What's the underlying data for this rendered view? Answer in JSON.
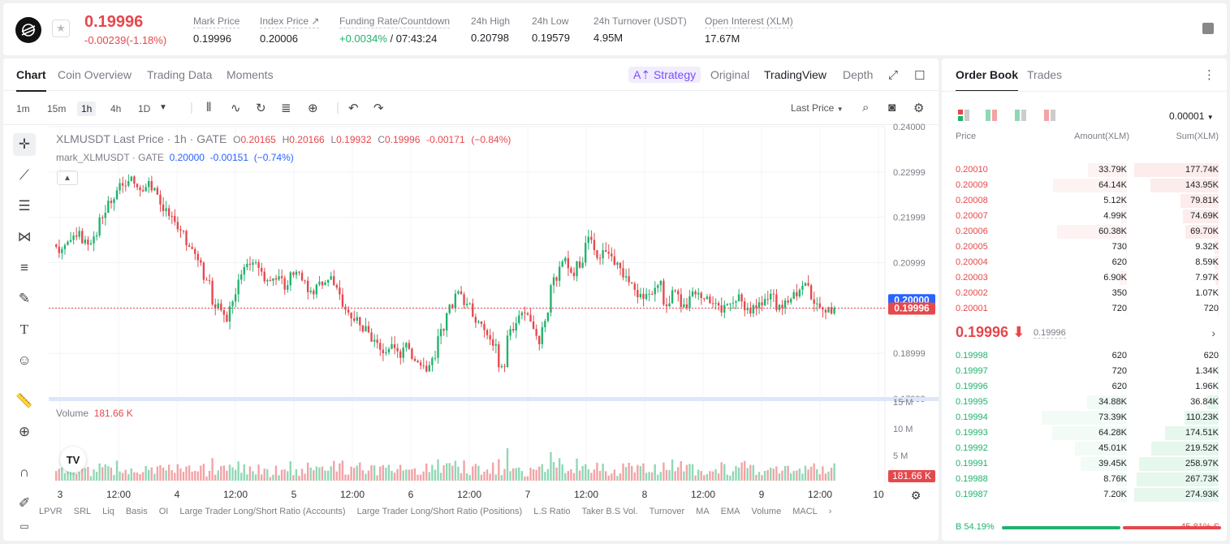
{
  "header": {
    "last_price": "0.19996",
    "change": "-0.00239(-1.18%)",
    "stats": [
      {
        "label": "Mark Price",
        "value": "0.19996"
      },
      {
        "label": "Index Price ↗",
        "value": "0.20006"
      },
      {
        "label": "Funding Rate/Countdown",
        "value_green": "+0.0034%",
        "value_rest": " / 07:43:24"
      },
      {
        "label": "24h High",
        "value": "0.20798"
      },
      {
        "label": "24h Low",
        "value": "0.19579"
      },
      {
        "label": "24h Turnover (USDT)",
        "value": "4.95M"
      },
      {
        "label": "Open Interest (XLM)",
        "value": "17.67M"
      }
    ]
  },
  "chart_tabs": {
    "tabs": [
      "Chart",
      "Coin Overview",
      "Trading Data",
      "Moments"
    ],
    "strategy": "Strategy",
    "views": [
      "Original",
      "TradingView",
      "Depth"
    ]
  },
  "toolbar": {
    "intervals": [
      "1m",
      "15m",
      "1h",
      "4h",
      "1D"
    ],
    "price_type": "Last Price"
  },
  "legend": {
    "line1_name": "XLMUSDT Last Price · 1h · GATE",
    "o_lbl": "O",
    "o": "0.20165",
    "h_lbl": "H",
    "h": "0.20166",
    "l_lbl": "L",
    "l": "0.19932",
    "c_lbl": "C",
    "c": "0.19996",
    "chg": "-0.00171",
    "chg_pct": "(−0.84%)",
    "line2_name": "mark_XLMUSDT · GATE",
    "mark": "0.20000",
    "mark_chg": "-0.00151",
    "mark_pct": "(−0.74%)",
    "volume_label": "Volume",
    "volume_value": "181.66 K"
  },
  "indicators": [
    "LPVR",
    "SRL",
    "Liq",
    "Basis",
    "OI",
    "Large Trader Long/Short Ratio (Accounts)",
    "Large Trader Long/Short Ratio (Positions)",
    "L.S Ratio",
    "Taker B.S Vol.",
    "Turnover",
    "MA",
    "EMA",
    "Volume",
    "MACL"
  ],
  "chart_data": {
    "type": "candlestick",
    "y_axis_ticks": [
      "0.24000",
      "0.22999",
      "0.21999",
      "0.20999",
      "0.19999",
      "0.18999",
      "0.17999"
    ],
    "ylim": [
      0.17999,
      0.24
    ],
    "x_axis_ticks": [
      "3",
      "12:00",
      "4",
      "12:00",
      "5",
      "12:00",
      "6",
      "12:00",
      "7",
      "12:00",
      "8",
      "12:00",
      "9",
      "12:00",
      "10"
    ],
    "volume_axis_ticks": [
      "15 M",
      "10 M",
      "5 M"
    ],
    "mark_price_tag": "0.20000",
    "last_price_tag": "0.19996",
    "volume_tag": "181.66 K",
    "close_path": [
      0.213,
      0.215,
      0.217,
      0.214,
      0.216,
      0.221,
      0.224,
      0.227,
      0.229,
      0.226,
      0.228,
      0.225,
      0.222,
      0.219,
      0.217,
      0.213,
      0.21,
      0.206,
      0.201,
      0.197,
      0.203,
      0.209,
      0.21,
      0.208,
      0.206,
      0.207,
      0.205,
      0.208,
      0.206,
      0.203,
      0.205,
      0.207,
      0.203,
      0.199,
      0.198,
      0.196,
      0.193,
      0.19,
      0.192,
      0.189,
      0.191,
      0.188,
      0.186,
      0.189,
      0.195,
      0.2,
      0.203,
      0.201,
      0.197,
      0.194,
      0.192,
      0.187,
      0.195,
      0.199,
      0.197,
      0.192,
      0.199,
      0.206,
      0.211,
      0.207,
      0.21,
      0.215,
      0.211,
      0.212,
      0.21,
      0.207,
      0.204,
      0.202,
      0.203,
      0.206,
      0.201,
      0.203,
      0.2,
      0.203,
      0.202,
      0.201,
      0.199,
      0.201,
      0.203,
      0.2,
      0.2,
      0.202,
      0.203,
      0.2,
      0.202,
      0.204,
      0.205,
      0.201,
      0.199,
      0.2
    ]
  },
  "orderbook": {
    "tabs": [
      "Order Book",
      "Trades"
    ],
    "precision": "0.00001",
    "headers": [
      "Price",
      "Amount(XLM)",
      "Sum(XLM)"
    ],
    "asks": [
      {
        "price": "0.20010",
        "amount": "33.79K",
        "sum": "177.74K",
        "depth": 1.0,
        "amt": 0.46
      },
      {
        "price": "0.20009",
        "amount": "64.14K",
        "sum": "143.95K",
        "depth": 0.81,
        "amt": 0.87
      },
      {
        "price": "0.20008",
        "amount": "5.12K",
        "sum": "79.81K",
        "depth": 0.45,
        "amt": 0.07
      },
      {
        "price": "0.20007",
        "amount": "4.99K",
        "sum": "74.69K",
        "depth": 0.42,
        "amt": 0.07
      },
      {
        "price": "0.20006",
        "amount": "60.38K",
        "sum": "69.70K",
        "depth": 0.39,
        "amt": 0.82
      },
      {
        "price": "0.20005",
        "amount": "730",
        "sum": "9.32K",
        "depth": 0.05,
        "amt": 0.01
      },
      {
        "price": "0.20004",
        "amount": "620",
        "sum": "8.59K",
        "depth": 0.05,
        "amt": 0.01
      },
      {
        "price": "0.20003",
        "amount": "6.90K",
        "sum": "7.97K",
        "depth": 0.04,
        "amt": 0.09
      },
      {
        "price": "0.20002",
        "amount": "350",
        "sum": "1.07K",
        "depth": 0.01,
        "amt": 0.005
      },
      {
        "price": "0.20001",
        "amount": "720",
        "sum": "720",
        "depth": 0.005,
        "amt": 0.01
      }
    ],
    "mid_price": "0.19996 ⬇",
    "mid_mark": "0.19996",
    "bids": [
      {
        "price": "0.19998",
        "amount": "620",
        "sum": "620",
        "depth": 0.002,
        "amt": 0.01
      },
      {
        "price": "0.19997",
        "amount": "720",
        "sum": "1.34K",
        "depth": 0.005,
        "amt": 0.01
      },
      {
        "price": "0.19996",
        "amount": "620",
        "sum": "1.96K",
        "depth": 0.007,
        "amt": 0.01
      },
      {
        "price": "0.19995",
        "amount": "34.88K",
        "sum": "36.84K",
        "depth": 0.13,
        "amt": 0.47
      },
      {
        "price": "0.19994",
        "amount": "73.39K",
        "sum": "110.23K",
        "depth": 0.4,
        "amt": 1.0
      },
      {
        "price": "0.19993",
        "amount": "64.28K",
        "sum": "174.51K",
        "depth": 0.63,
        "amt": 0.88
      },
      {
        "price": "0.19992",
        "amount": "45.01K",
        "sum": "219.52K",
        "depth": 0.8,
        "amt": 0.61
      },
      {
        "price": "0.19991",
        "amount": "39.45K",
        "sum": "258.97K",
        "depth": 0.94,
        "amt": 0.54
      },
      {
        "price": "0.19988",
        "amount": "8.76K",
        "sum": "267.73K",
        "depth": 0.97,
        "amt": 0.12
      },
      {
        "price": "0.19987",
        "amount": "7.20K",
        "sum": "274.93K",
        "depth": 1.0,
        "amt": 0.1
      }
    ],
    "buy_ratio": "B 54.19%",
    "sell_ratio": "45.81% S",
    "buy_fraction": 0.5419
  },
  "colors": {
    "up": "#20b26c",
    "down": "#e5484d",
    "accent": "#7b4dff",
    "mark_tag": "#2962ff"
  }
}
